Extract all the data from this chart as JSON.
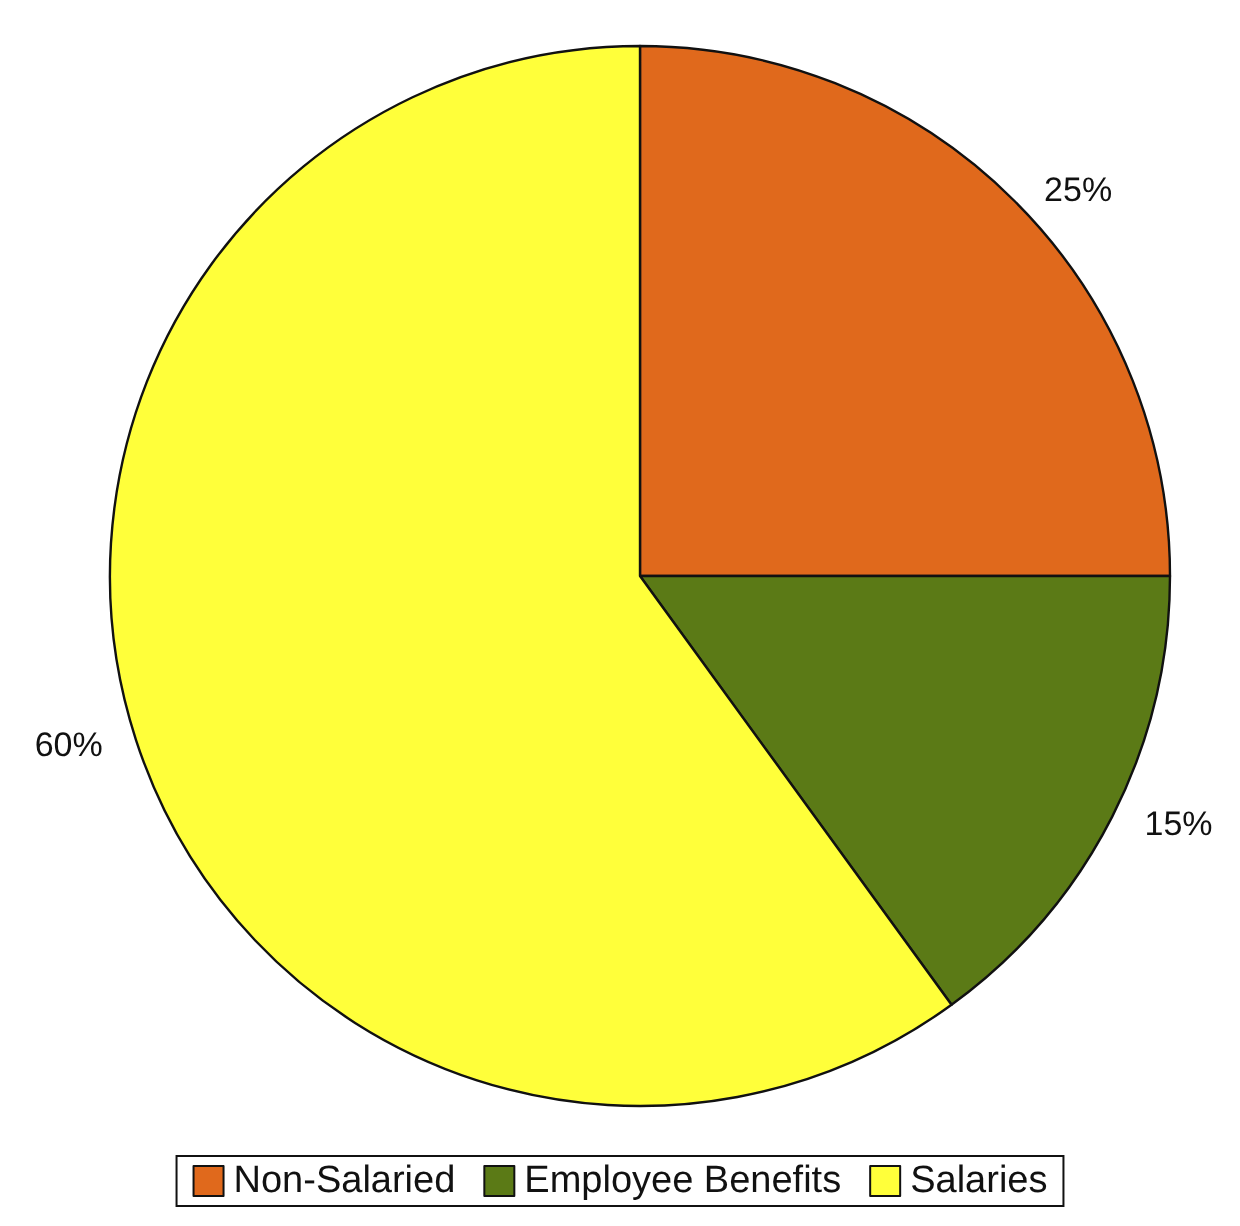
{
  "chart_data": {
    "type": "pie",
    "categories": [
      "Non-Salaried",
      "Employee Benefits",
      "Salaries"
    ],
    "values": [
      25,
      15,
      60
    ],
    "value_labels": [
      "25%",
      "15%",
      "60%"
    ],
    "colors": [
      "#e0691c",
      "#5b7a16",
      "#ffff3a"
    ],
    "legend": "bottom"
  }
}
